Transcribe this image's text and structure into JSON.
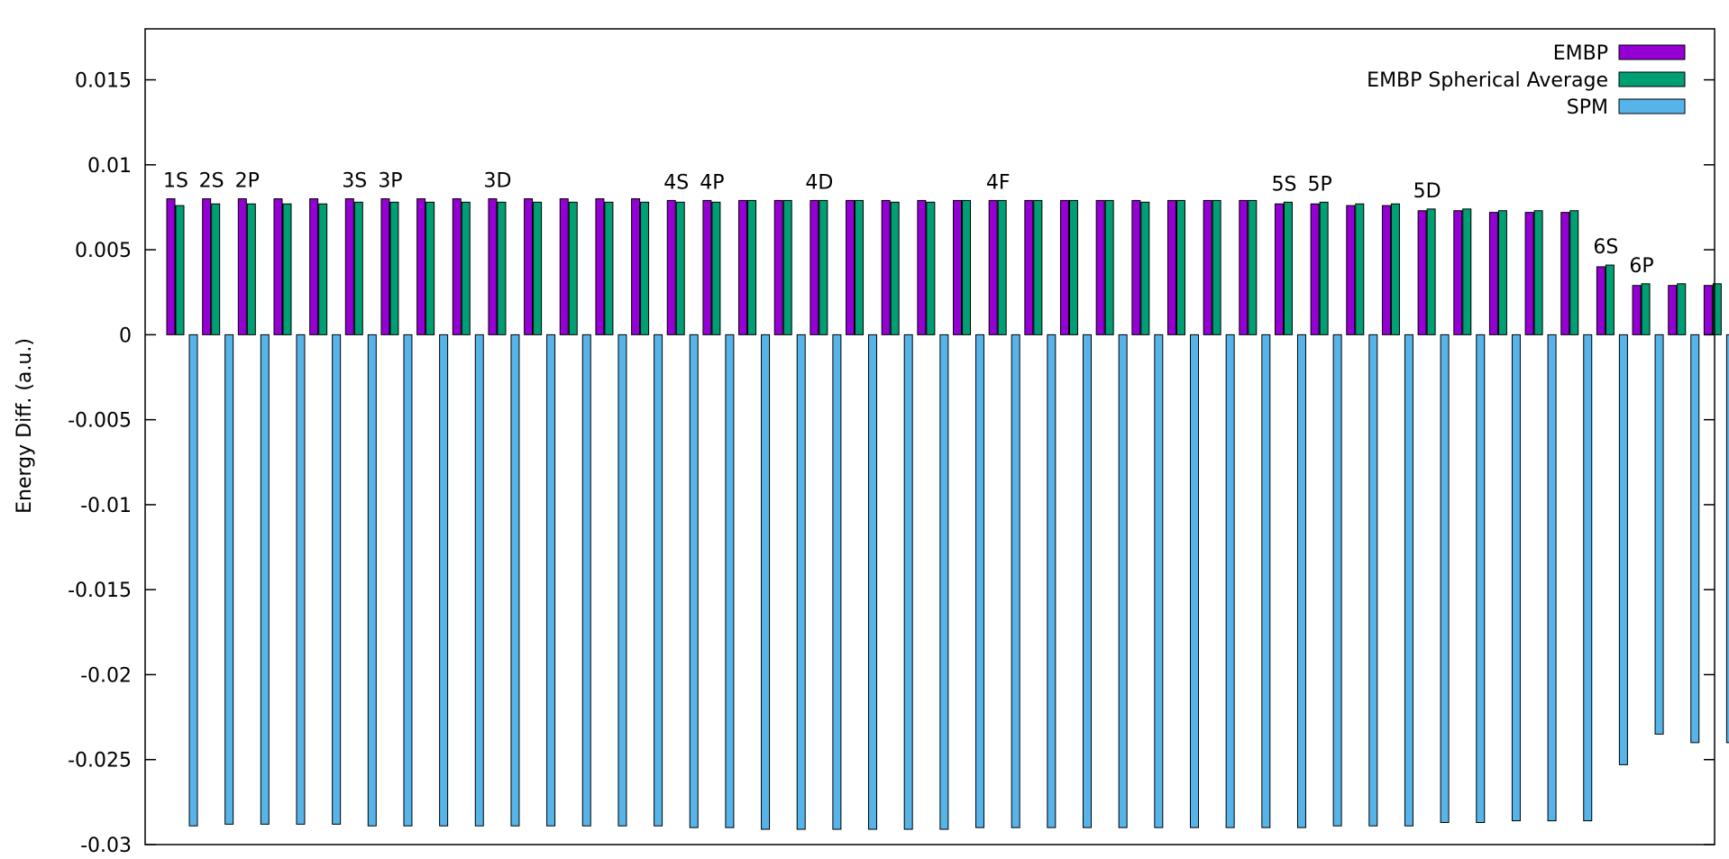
{
  "chart_data": {
    "type": "bar",
    "ylabel": "Energy Diff. (a.u.)",
    "ylim": [
      -0.03,
      0.018
    ],
    "yticks": [
      0.015,
      0.01,
      0.005,
      0,
      -0.005,
      -0.01,
      -0.015,
      -0.02,
      -0.025,
      -0.03
    ],
    "ytick_labels": [
      "0.015",
      "0.01",
      "0.005",
      "0",
      "-0.005",
      "-0.01",
      "-0.015",
      "-0.02",
      "-0.025",
      "-0.03"
    ],
    "grid": false,
    "legend_position": "top-right",
    "series": [
      {
        "name": "EMBP",
        "color": "#9400d3",
        "values": [
          0.008,
          0.008,
          0.008,
          0.008,
          0.008,
          0.008,
          0.008,
          0.008,
          0.008,
          0.008,
          0.008,
          0.008,
          0.008,
          0.008,
          0.0079,
          0.0079,
          0.0079,
          0.0079,
          0.0079,
          0.0079,
          0.0079,
          0.0079,
          0.0079,
          0.0079,
          0.0079,
          0.0079,
          0.0079,
          0.0079,
          0.0079,
          0.0079,
          0.0079,
          0.0077,
          0.0077,
          0.0076,
          0.0076,
          0.0073,
          0.0073,
          0.0072,
          0.0072,
          0.0072,
          0.004,
          0.0029,
          0.0029,
          0.0029
        ]
      },
      {
        "name": "EMBP Spherical Average",
        "color": "#009e73",
        "values": [
          0.0076,
          0.0077,
          0.0077,
          0.0077,
          0.0077,
          0.0078,
          0.0078,
          0.0078,
          0.0078,
          0.0078,
          0.0078,
          0.0078,
          0.0078,
          0.0078,
          0.0078,
          0.0078,
          0.0079,
          0.0079,
          0.0079,
          0.0079,
          0.0078,
          0.0078,
          0.0079,
          0.0079,
          0.0079,
          0.0079,
          0.0079,
          0.0078,
          0.0079,
          0.0079,
          0.0079,
          0.0078,
          0.0078,
          0.0077,
          0.0077,
          0.0074,
          0.0074,
          0.0073,
          0.0073,
          0.0073,
          0.0041,
          0.003,
          0.003,
          0.003
        ]
      },
      {
        "name": "SPM",
        "color": "#56b4e9",
        "values": [
          -0.0289,
          -0.0288,
          -0.0288,
          -0.0288,
          -0.0288,
          -0.0289,
          -0.0289,
          -0.0289,
          -0.0289,
          -0.0289,
          -0.0289,
          -0.0289,
          -0.0289,
          -0.0289,
          -0.029,
          -0.029,
          -0.0291,
          -0.0291,
          -0.0291,
          -0.0291,
          -0.0291,
          -0.0291,
          -0.029,
          -0.029,
          -0.029,
          -0.029,
          -0.029,
          -0.029,
          -0.029,
          -0.029,
          -0.029,
          -0.029,
          -0.0289,
          -0.0289,
          -0.0289,
          -0.0287,
          -0.0287,
          -0.0286,
          -0.0286,
          -0.0286,
          -0.0253,
          -0.0235,
          -0.024,
          -0.024
        ]
      }
    ],
    "annotations": [
      {
        "text": "1S",
        "group": 0
      },
      {
        "text": "2S",
        "group": 1
      },
      {
        "text": "2P",
        "group": 2
      },
      {
        "text": "3S",
        "group": 5
      },
      {
        "text": "3P",
        "group": 6
      },
      {
        "text": "3D",
        "group": 9
      },
      {
        "text": "4S",
        "group": 14
      },
      {
        "text": "4P",
        "group": 15
      },
      {
        "text": "4D",
        "group": 18
      },
      {
        "text": "4F",
        "group": 23
      },
      {
        "text": "5S",
        "group": 31
      },
      {
        "text": "5P",
        "group": 32
      },
      {
        "text": "5D",
        "group": 35
      },
      {
        "text": "6S",
        "group": 40
      },
      {
        "text": "6P",
        "group": 41
      }
    ]
  }
}
